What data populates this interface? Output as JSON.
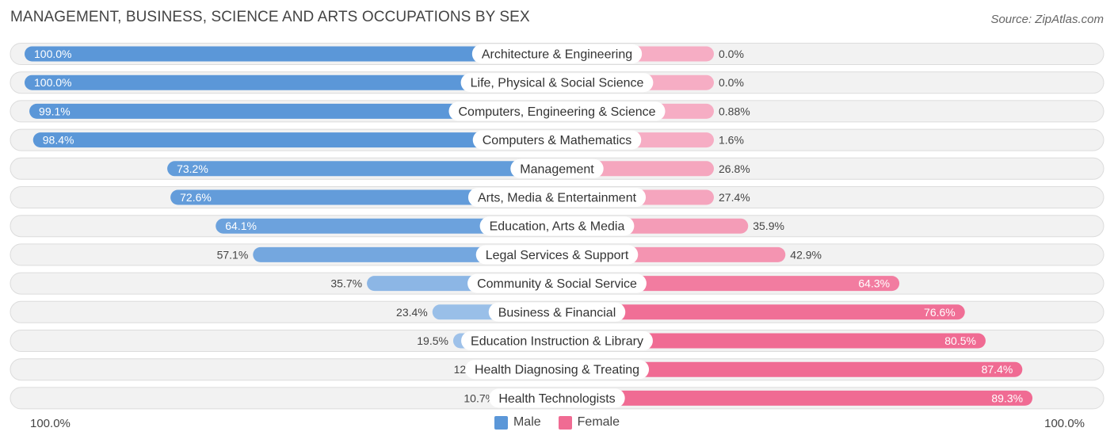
{
  "title": "MANAGEMENT, BUSINESS, SCIENCE AND ARTS OCCUPATIONS BY SEX",
  "source": "Source: ZipAtlas.com",
  "colors": {
    "male_strong": "#5b97d8",
    "male_light": "#a8c8ec",
    "female_strong": "#f06b93",
    "female_light": "#f6adc4",
    "row_bg": "#f2f2f2",
    "row_border": "#dcdcdc"
  },
  "axis": {
    "left_label": "100.0%",
    "right_label": "100.0%"
  },
  "legend": [
    {
      "name": "Male",
      "color": "#5b97d8"
    },
    {
      "name": "Female",
      "color": "#f06b93"
    }
  ],
  "chart_data": {
    "type": "bar",
    "orientation": "horizontal-diverging",
    "title": "MANAGEMENT, BUSINESS, SCIENCE AND ARTS OCCUPATIONS BY SEX",
    "xlim": [
      -100,
      100
    ],
    "categories": [
      "Architecture & Engineering",
      "Life, Physical & Social Science",
      "Computers, Engineering & Science",
      "Computers & Mathematics",
      "Management",
      "Arts, Media & Entertainment",
      "Education, Arts & Media",
      "Legal Services & Support",
      "Community & Social Service",
      "Business & Financial",
      "Education Instruction & Library",
      "Health Diagnosing & Treating",
      "Health Technologists"
    ],
    "series": [
      {
        "name": "Male",
        "values": [
          100.0,
          100.0,
          99.1,
          98.4,
          73.2,
          72.6,
          64.1,
          57.1,
          35.7,
          23.4,
          19.5,
          12.6,
          10.7
        ],
        "labels": [
          "100.0%",
          "100.0%",
          "99.1%",
          "98.4%",
          "73.2%",
          "72.6%",
          "64.1%",
          "57.1%",
          "35.7%",
          "23.4%",
          "19.5%",
          "12.6%",
          "10.7%"
        ]
      },
      {
        "name": "Female",
        "values": [
          0.0,
          0.0,
          0.88,
          1.6,
          26.8,
          27.4,
          35.9,
          42.9,
          64.3,
          76.6,
          80.5,
          87.4,
          89.3
        ],
        "labels": [
          "0.0%",
          "0.0%",
          "0.88%",
          "1.6%",
          "26.8%",
          "27.4%",
          "35.9%",
          "42.9%",
          "64.3%",
          "76.6%",
          "80.5%",
          "87.4%",
          "89.3%"
        ]
      }
    ]
  }
}
